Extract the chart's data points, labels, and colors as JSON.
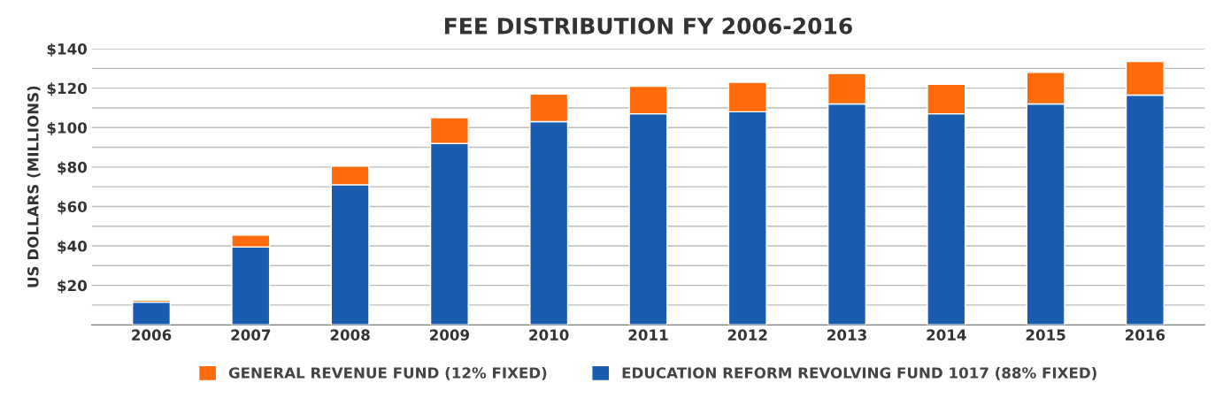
{
  "chart_data": {
    "type": "bar",
    "title": "FEE DISTRIBUTION FY 2006-2016",
    "ylabel": "US DOLLARS (MILLIONS)",
    "categories": [
      "2006",
      "2007",
      "2008",
      "2009",
      "2010",
      "2011",
      "2012",
      "2013",
      "2014",
      "2015",
      "2016"
    ],
    "stacked": true,
    "series": [
      {
        "name": "EDUCATION REFORM REVOLVING FUND 1017 (88% FIXED)",
        "color": "#1a5cb0",
        "values": [
          11.5,
          39.5,
          71,
          92,
          103,
          107,
          108,
          112,
          107,
          112,
          116.5
        ]
      },
      {
        "name": "GENERAL REVENUE FUND (12% FIXED)",
        "color": "#ff6a0a",
        "values": [
          1,
          6,
          9.5,
          13,
          14,
          14,
          15,
          15.5,
          15,
          16,
          17
        ]
      }
    ],
    "ylim": [
      0,
      140
    ],
    "yticks": [
      {
        "value": 10,
        "label": null
      },
      {
        "value": 20,
        "label": "$20"
      },
      {
        "value": 30,
        "label": null
      },
      {
        "value": 40,
        "label": "$40"
      },
      {
        "value": 50,
        "label": null
      },
      {
        "value": 60,
        "label": "$60"
      },
      {
        "value": 70,
        "label": null
      },
      {
        "value": 80,
        "label": "$80"
      },
      {
        "value": 90,
        "label": null
      },
      {
        "value": 100,
        "label": "$100"
      },
      {
        "value": 110,
        "label": null
      },
      {
        "value": 120,
        "label": "$120"
      },
      {
        "value": 130,
        "label": null
      },
      {
        "value": 140,
        "label": "$140"
      }
    ],
    "grid": "y",
    "legend": "bottom"
  }
}
